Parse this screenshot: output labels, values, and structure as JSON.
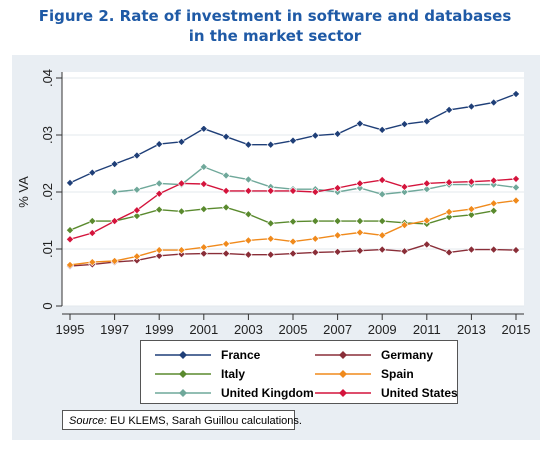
{
  "title_line1": "Figure 2. Rate of investment in software and databases",
  "title_line2": "in the market sector",
  "source_prefix": "Source:",
  "source_text": " EU KLEMS, Sarah Guillou calculations.",
  "chart_data": {
    "type": "line",
    "ylabel": "% VA",
    "xlabel": "",
    "ylim": [
      0,
      0.04
    ],
    "xlim": [
      1995,
      2015
    ],
    "y_ticks": [
      0,
      0.01,
      0.02,
      0.03,
      0.04
    ],
    "y_tick_labels": [
      "0",
      ".01",
      ".02",
      ".03",
      ".04"
    ],
    "x_ticks": [
      1995,
      1997,
      1999,
      2001,
      2003,
      2005,
      2007,
      2009,
      2011,
      2013,
      2015
    ],
    "x_tick_labels": [
      "1995",
      "1997",
      "1999",
      "2001",
      "2003",
      "2005",
      "2007",
      "2009",
      "2011",
      "2013",
      "2015"
    ],
    "grid": "horizontal",
    "legend_position": "bottom",
    "series": [
      {
        "name": "France",
        "color": "#1f3f78",
        "x": [
          1995,
          1996,
          1997,
          1998,
          1999,
          2000,
          2001,
          2002,
          2003,
          2004,
          2005,
          2006,
          2007,
          2008,
          2009,
          2010,
          2011,
          2012,
          2013,
          2014,
          2015
        ],
        "values": [
          0.0216,
          0.0234,
          0.0249,
          0.0264,
          0.0284,
          0.0288,
          0.0311,
          0.0297,
          0.0283,
          0.0283,
          0.029,
          0.0299,
          0.0302,
          0.032,
          0.0309,
          0.0319,
          0.0324,
          0.0344,
          0.035,
          0.0357,
          0.0372
        ]
      },
      {
        "name": "Germany",
        "color": "#8a2e38",
        "x": [
          1995,
          1996,
          1997,
          1998,
          1999,
          2000,
          2001,
          2002,
          2003,
          2004,
          2005,
          2006,
          2007,
          2008,
          2009,
          2010,
          2011,
          2012,
          2013,
          2014,
          2015
        ],
        "values": [
          0.007,
          0.0073,
          0.0077,
          0.008,
          0.0088,
          0.0091,
          0.0092,
          0.0092,
          0.009,
          0.009,
          0.0092,
          0.0094,
          0.0095,
          0.0097,
          0.0099,
          0.0096,
          0.0108,
          0.0094,
          0.0099,
          0.0099,
          0.0098
        ]
      },
      {
        "name": "Italy",
        "color": "#5a8a2e",
        "x": [
          1995,
          1996,
          1997,
          1998,
          1999,
          2000,
          2001,
          2002,
          2003,
          2004,
          2005,
          2006,
          2007,
          2008,
          2009,
          2010,
          2011,
          2012,
          2013,
          2014
        ],
        "values": [
          0.0133,
          0.0149,
          0.0149,
          0.0158,
          0.0169,
          0.0166,
          0.017,
          0.0173,
          0.0161,
          0.0145,
          0.0148,
          0.0149,
          0.0149,
          0.0149,
          0.0149,
          0.0146,
          0.0144,
          0.0156,
          0.016,
          0.0167
        ]
      },
      {
        "name": "Spain",
        "color": "#f08a1c",
        "x": [
          1995,
          1996,
          1997,
          1998,
          1999,
          2000,
          2001,
          2002,
          2003,
          2004,
          2005,
          2006,
          2007,
          2008,
          2009,
          2010,
          2011,
          2012,
          2013,
          2014,
          2015
        ],
        "values": [
          0.0072,
          0.0077,
          0.0079,
          0.0087,
          0.0098,
          0.0098,
          0.0103,
          0.0109,
          0.0115,
          0.0118,
          0.0113,
          0.0118,
          0.0124,
          0.0129,
          0.0124,
          0.0142,
          0.015,
          0.0165,
          0.017,
          0.018,
          0.0185
        ]
      },
      {
        "name": "United Kingdom",
        "color": "#6fa89a",
        "x": [
          1997,
          1998,
          1999,
          2000,
          2001,
          2002,
          2003,
          2004,
          2005,
          2006,
          2007,
          2008,
          2009,
          2010,
          2011,
          2012,
          2013,
          2014,
          2015
        ],
        "values": [
          0.02,
          0.0204,
          0.0215,
          0.0213,
          0.0244,
          0.0229,
          0.0222,
          0.0209,
          0.0205,
          0.0205,
          0.02,
          0.0207,
          0.0196,
          0.02,
          0.0205,
          0.0213,
          0.0213,
          0.0213,
          0.0208
        ]
      },
      {
        "name": "United States",
        "color": "#d4143c",
        "x": [
          1995,
          1996,
          1997,
          1998,
          1999,
          2000,
          2001,
          2002,
          2003,
          2004,
          2005,
          2006,
          2007,
          2008,
          2009,
          2010,
          2011,
          2012,
          2013,
          2014,
          2015
        ],
        "values": [
          0.0117,
          0.0128,
          0.0149,
          0.0168,
          0.0197,
          0.0215,
          0.0214,
          0.0202,
          0.0202,
          0.0202,
          0.0202,
          0.02,
          0.0207,
          0.0215,
          0.0221,
          0.0209,
          0.0215,
          0.0217,
          0.0218,
          0.022,
          0.0223
        ]
      }
    ]
  }
}
